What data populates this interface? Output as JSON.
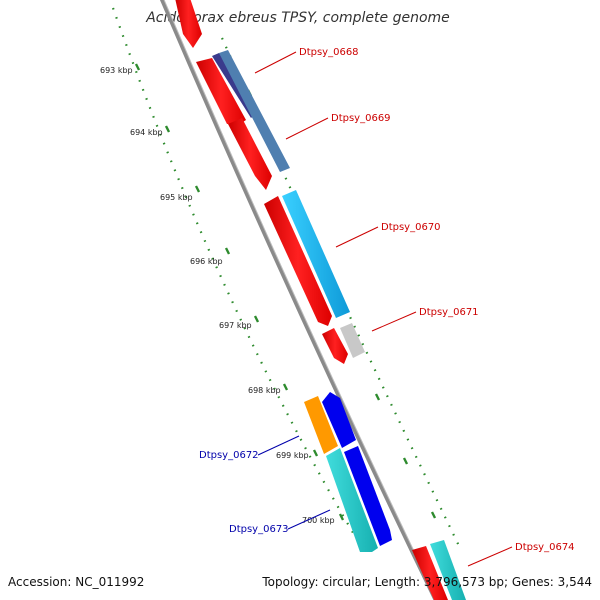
{
  "map": {
    "title": "Acidovorax ebreus TPSY, complete genome",
    "accession_text": "Accession: NC_011992",
    "summary_text": "Topology: circular; Length: 3,796,573 bp; Genes: 3,544",
    "colors": {
      "backbone": "#808080",
      "tick_dots": "#2e8b2e",
      "forward_label": "#cc0000",
      "reverse_label": "#0000aa"
    },
    "scale_ticks": [
      {
        "label": "693 kbp",
        "kbp": 693
      },
      {
        "label": "694 kbp",
        "kbp": 694
      },
      {
        "label": "695 kbp",
        "kbp": 695
      },
      {
        "label": "696 kbp",
        "kbp": 696
      },
      {
        "label": "697 kbp",
        "kbp": 697
      },
      {
        "label": "698 kbp",
        "kbp": 698
      },
      {
        "label": "699 kbp",
        "kbp": 699
      },
      {
        "label": "700 kbp",
        "kbp": 700
      }
    ],
    "gene_labels": [
      {
        "text": "Dtpsy_0668",
        "strand": "forward"
      },
      {
        "text": "Dtpsy_0669",
        "strand": "forward"
      },
      {
        "text": "Dtpsy_0670",
        "strand": "forward"
      },
      {
        "text": "Dtpsy_0671",
        "strand": "forward"
      },
      {
        "text": "Dtpsy_0672",
        "strand": "reverse"
      },
      {
        "text": "Dtpsy_0673",
        "strand": "reverse"
      },
      {
        "text": "Dtpsy_0674",
        "strand": "forward"
      }
    ],
    "feature_tracks": [
      {
        "name": "red-cds",
        "color": "#ff0000"
      },
      {
        "name": "steelblue-cds",
        "color": "#4f7fb0"
      },
      {
        "name": "skyblue-cds",
        "color": "#1ab0f0"
      },
      {
        "name": "gray-cds",
        "color": "#c0c0c0"
      },
      {
        "name": "orange-cds",
        "color": "#ff9900"
      },
      {
        "name": "blue-cds",
        "color": "#0000ee"
      },
      {
        "name": "teal-cds",
        "color": "#20c8c8"
      }
    ]
  }
}
